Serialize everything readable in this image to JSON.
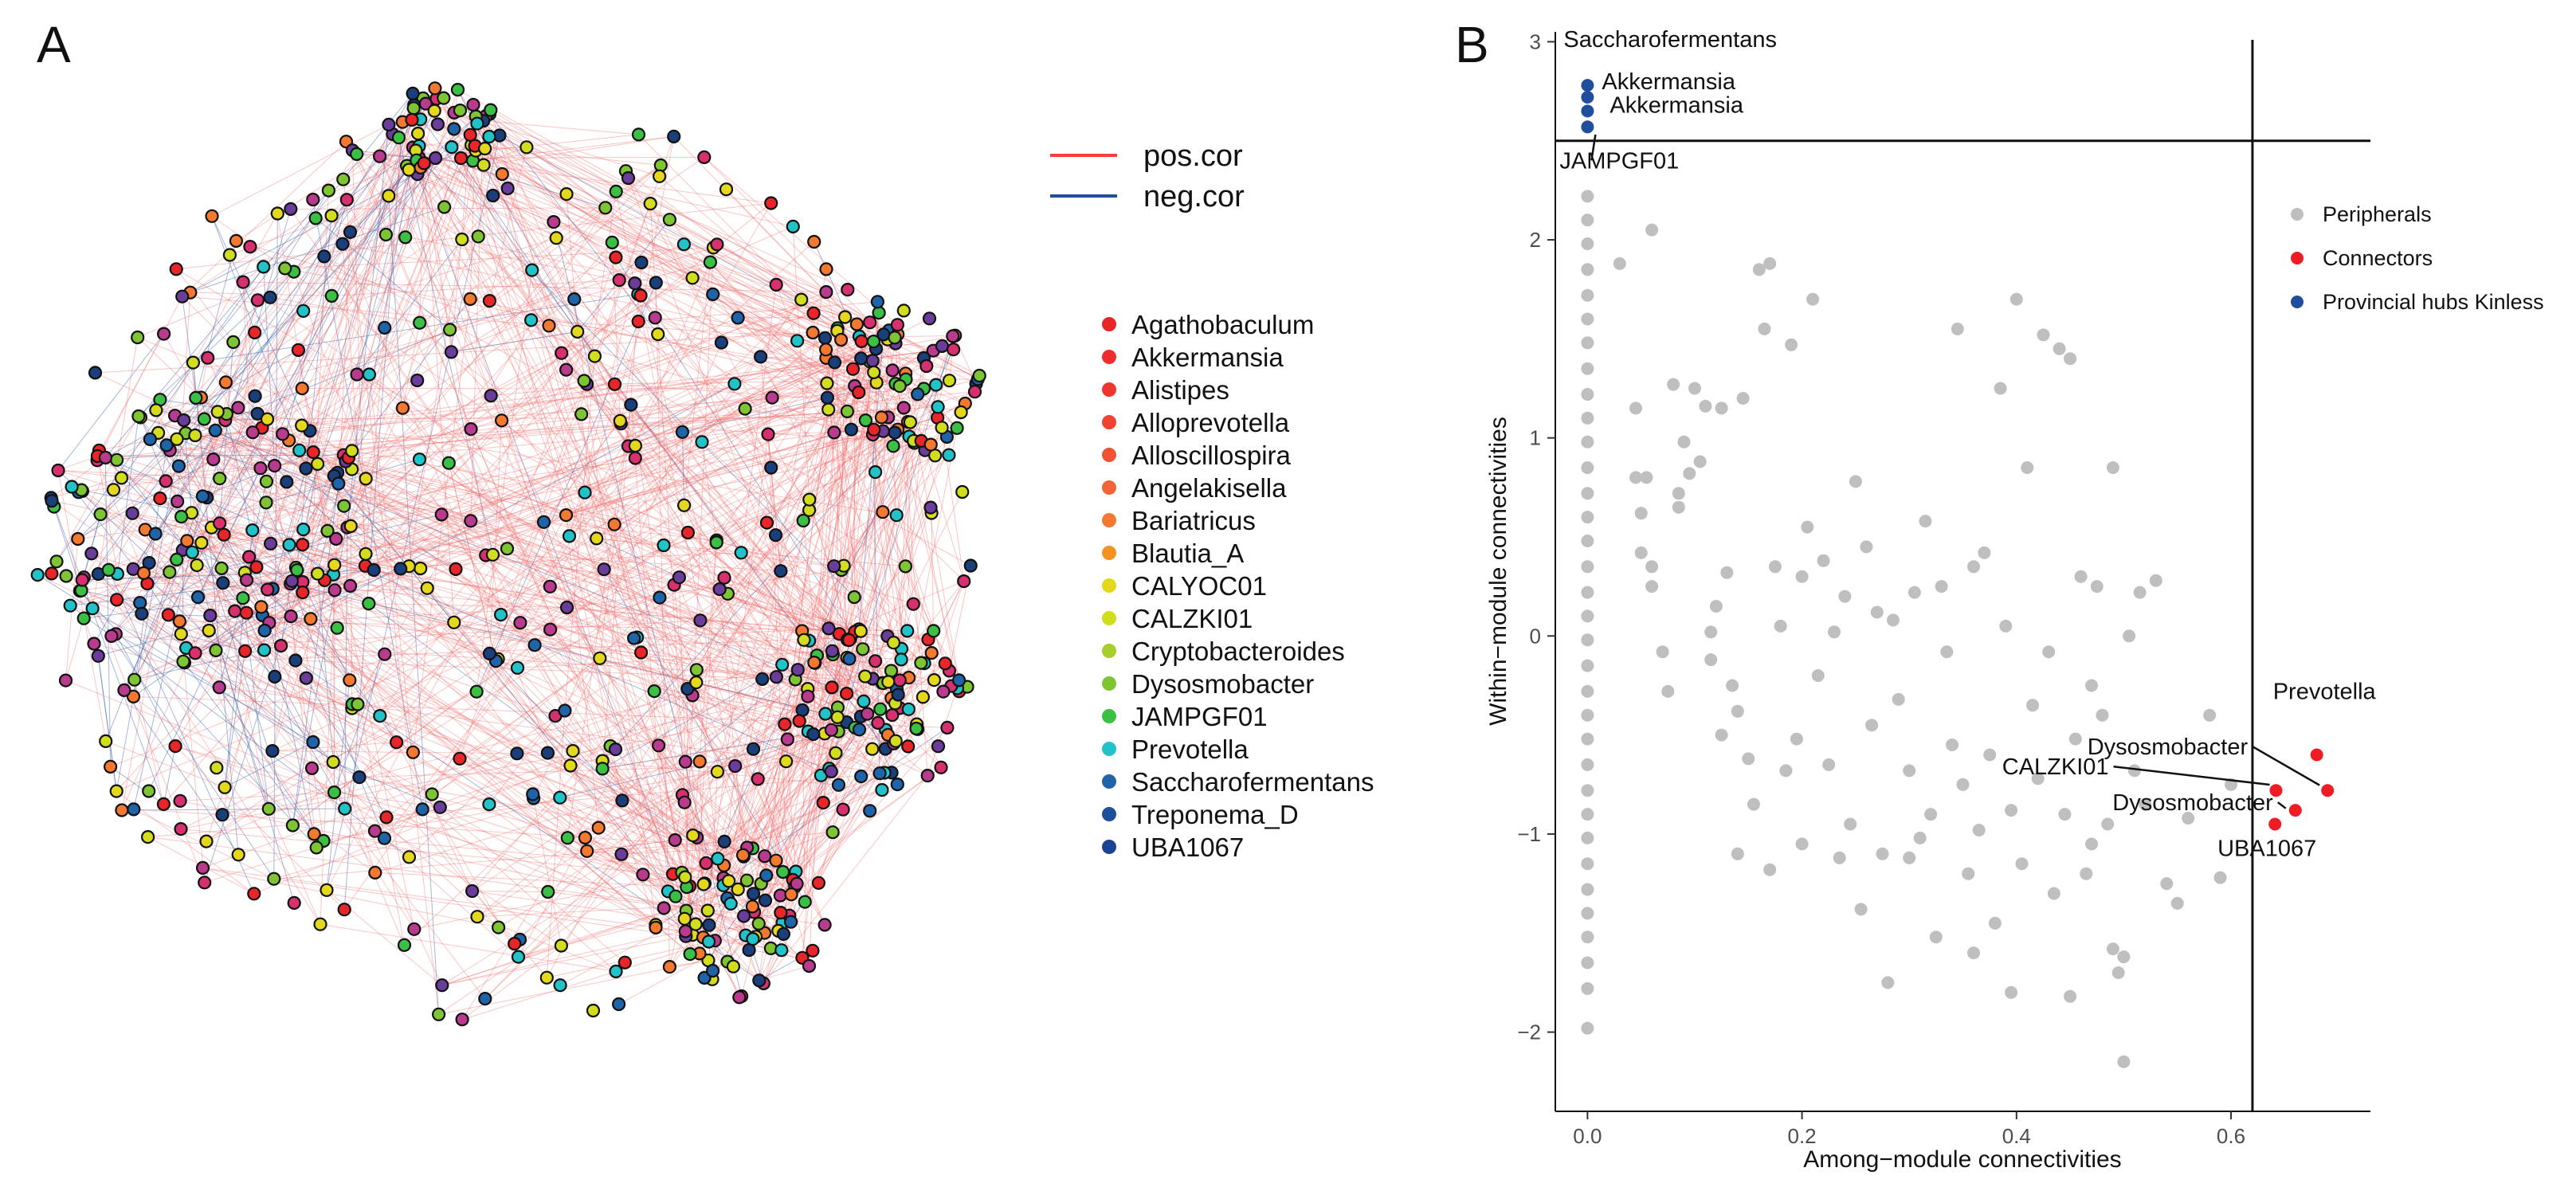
{
  "panel_a": {
    "label": "A",
    "edge_legend": [
      {
        "label": "pos.cor",
        "color": "#ff3b3b"
      },
      {
        "label": "neg.cor",
        "color": "#1f4e9c"
      }
    ],
    "genus_legend": [
      {
        "label": "Agathobaculum",
        "color": "#e8262a"
      },
      {
        "label": "Akkermansia",
        "color": "#ee2e2e"
      },
      {
        "label": "Alistipes",
        "color": "#f0352e"
      },
      {
        "label": "Alloprevotella",
        "color": "#f04430"
      },
      {
        "label": "Alloscillospira",
        "color": "#f15233"
      },
      {
        "label": "Angelakisella",
        "color": "#f26437"
      },
      {
        "label": "Bariatricus",
        "color": "#f2792f"
      },
      {
        "label": "Blautia_A",
        "color": "#f39123"
      },
      {
        "label": "CALYOC01",
        "color": "#e3d81b"
      },
      {
        "label": "CALZKI01",
        "color": "#d2dd1e"
      },
      {
        "label": "Cryptobacteroides",
        "color": "#a6cf2b"
      },
      {
        "label": "Dysosmobacter",
        "color": "#7fc433"
      },
      {
        "label": "JAMPGF01",
        "color": "#3bbf45"
      },
      {
        "label": "Prevotella",
        "color": "#22c3c8"
      },
      {
        "label": "Saccharofermentans",
        "color": "#1f63a8"
      },
      {
        "label": "Treponema_D",
        "color": "#1d4f9a"
      },
      {
        "label": "UBA1067",
        "color": "#1b4394"
      }
    ],
    "node_palette": [
      "#e8262a",
      "#d6306f",
      "#b83b8e",
      "#f2792f",
      "#e3d81b",
      "#d2dd1e",
      "#7fc433",
      "#3bbf45",
      "#22c3c8",
      "#1f63a8",
      "#1b3f7a",
      "#6a3d9a"
    ]
  },
  "panel_b": {
    "label": "B",
    "chart_data": {
      "type": "scatter",
      "xlabel": "Among−module connectivities",
      "ylabel": "Within−module connectivities",
      "xlim": [
        -0.03,
        0.73
      ],
      "ylim": [
        -2.4,
        3.05
      ],
      "x_ticks": [
        0.0,
        0.2,
        0.4,
        0.6
      ],
      "y_ticks": [
        -2,
        -1,
        0,
        1,
        2,
        3
      ],
      "x_tick_labels": [
        "0.0",
        "0.2",
        "0.4",
        "0.6"
      ],
      "y_tick_labels": [
        "−2",
        "−1",
        "0",
        "1",
        "2",
        "3"
      ],
      "thresholds": {
        "pc": 0.62,
        "zi": 2.5
      },
      "legend": [
        {
          "label": "Peripherals",
          "color": "#bfbfbf"
        },
        {
          "label": "Connectors",
          "color": "#ee1c25"
        },
        {
          "label": "Provincial hubs Kinless",
          "color": "#1f4e9c"
        }
      ],
      "series": [
        {
          "name": "Provincial hubs Kinless",
          "color": "#1f4e9c",
          "points": [
            [
              0.0,
              2.78
            ],
            [
              0.0,
              2.72
            ],
            [
              0.0,
              2.65
            ],
            [
              0.0,
              2.57
            ]
          ]
        },
        {
          "name": "Connectors",
          "color": "#ee1c25",
          "points": [
            [
              0.68,
              -0.6
            ],
            [
              0.69,
              -0.78
            ],
            [
              0.642,
              -0.78
            ],
            [
              0.66,
              -0.88
            ],
            [
              0.641,
              -0.95
            ]
          ]
        },
        {
          "name": "Peripherals",
          "color": "#bfbfbf",
          "points": [
            [
              0.0,
              2.22
            ],
            [
              0.0,
              2.1
            ],
            [
              0.0,
              1.98
            ],
            [
              0.0,
              1.85
            ],
            [
              0.0,
              1.72
            ],
            [
              0.0,
              1.6
            ],
            [
              0.0,
              1.48
            ],
            [
              0.0,
              1.35
            ],
            [
              0.0,
              1.22
            ],
            [
              0.0,
              1.1
            ],
            [
              0.0,
              0.98
            ],
            [
              0.0,
              0.85
            ],
            [
              0.0,
              0.72
            ],
            [
              0.0,
              0.6
            ],
            [
              0.0,
              0.48
            ],
            [
              0.0,
              0.35
            ],
            [
              0.0,
              0.22
            ],
            [
              0.0,
              0.1
            ],
            [
              0.0,
              -0.02
            ],
            [
              0.0,
              -0.15
            ],
            [
              0.0,
              -0.28
            ],
            [
              0.0,
              -0.4
            ],
            [
              0.0,
              -0.52
            ],
            [
              0.0,
              -0.65
            ],
            [
              0.0,
              -0.78
            ],
            [
              0.0,
              -0.9
            ],
            [
              0.0,
              -1.02
            ],
            [
              0.0,
              -1.15
            ],
            [
              0.0,
              -1.28
            ],
            [
              0.0,
              -1.4
            ],
            [
              0.0,
              -1.52
            ],
            [
              0.0,
              -1.65
            ],
            [
              0.0,
              -1.78
            ],
            [
              0.0,
              -1.98
            ],
            [
              0.03,
              1.88
            ],
            [
              0.06,
              2.05
            ],
            [
              0.045,
              1.15
            ],
            [
              0.045,
              0.8
            ],
            [
              0.055,
              0.8
            ],
            [
              0.05,
              0.62
            ],
            [
              0.05,
              0.42
            ],
            [
              0.06,
              0.35
            ],
            [
              0.06,
              0.25
            ],
            [
              0.07,
              -0.08
            ],
            [
              0.075,
              -0.28
            ],
            [
              0.08,
              1.27
            ],
            [
              0.085,
              0.72
            ],
            [
              0.085,
              0.65
            ],
            [
              0.09,
              0.98
            ],
            [
              0.095,
              0.82
            ],
            [
              0.1,
              1.25
            ],
            [
              0.105,
              0.88
            ],
            [
              0.11,
              1.16
            ],
            [
              0.115,
              -0.12
            ],
            [
              0.115,
              0.02
            ],
            [
              0.12,
              0.15
            ],
            [
              0.125,
              1.15
            ],
            [
              0.13,
              0.32
            ],
            [
              0.135,
              -0.25
            ],
            [
              0.14,
              -0.38
            ],
            [
              0.145,
              1.2
            ],
            [
              0.15,
              -0.62
            ],
            [
              0.155,
              -0.85
            ],
            [
              0.16,
              1.85
            ],
            [
              0.165,
              1.55
            ],
            [
              0.17,
              1.88
            ],
            [
              0.175,
              0.35
            ],
            [
              0.18,
              0.05
            ],
            [
              0.185,
              -0.68
            ],
            [
              0.19,
              1.47
            ],
            [
              0.195,
              -0.52
            ],
            [
              0.2,
              0.3
            ],
            [
              0.205,
              0.55
            ],
            [
              0.21,
              1.7
            ],
            [
              0.215,
              -0.2
            ],
            [
              0.22,
              0.38
            ],
            [
              0.225,
              -0.65
            ],
            [
              0.23,
              0.02
            ],
            [
              0.235,
              -1.12
            ],
            [
              0.24,
              0.2
            ],
            [
              0.245,
              -0.95
            ],
            [
              0.25,
              0.78
            ],
            [
              0.255,
              -1.38
            ],
            [
              0.26,
              0.45
            ],
            [
              0.265,
              -0.45
            ],
            [
              0.27,
              0.12
            ],
            [
              0.275,
              -1.1
            ],
            [
              0.28,
              -1.75
            ],
            [
              0.285,
              0.08
            ],
            [
              0.29,
              -0.32
            ],
            [
              0.3,
              -0.68
            ],
            [
              0.305,
              0.22
            ],
            [
              0.31,
              -1.02
            ],
            [
              0.315,
              0.58
            ],
            [
              0.32,
              -0.9
            ],
            [
              0.325,
              -1.52
            ],
            [
              0.33,
              0.25
            ],
            [
              0.335,
              -0.08
            ],
            [
              0.34,
              -0.55
            ],
            [
              0.345,
              1.55
            ],
            [
              0.35,
              -0.75
            ],
            [
              0.355,
              -1.2
            ],
            [
              0.36,
              0.35
            ],
            [
              0.365,
              -0.98
            ],
            [
              0.37,
              0.42
            ],
            [
              0.375,
              -0.6
            ],
            [
              0.38,
              -1.45
            ],
            [
              0.385,
              1.25
            ],
            [
              0.39,
              0.05
            ],
            [
              0.395,
              -0.88
            ],
            [
              0.4,
              1.7
            ],
            [
              0.405,
              -1.15
            ],
            [
              0.41,
              0.85
            ],
            [
              0.415,
              -0.35
            ],
            [
              0.42,
              -0.72
            ],
            [
              0.425,
              1.52
            ],
            [
              0.43,
              -0.08
            ],
            [
              0.435,
              -1.3
            ],
            [
              0.44,
              1.45
            ],
            [
              0.445,
              -0.9
            ],
            [
              0.45,
              1.4
            ],
            [
              0.455,
              -0.52
            ],
            [
              0.46,
              0.3
            ],
            [
              0.465,
              -1.2
            ],
            [
              0.47,
              -1.05
            ],
            [
              0.475,
              0.25
            ],
            [
              0.48,
              -0.4
            ],
            [
              0.485,
              -0.95
            ],
            [
              0.49,
              0.85
            ],
            [
              0.495,
              -1.7
            ],
            [
              0.5,
              -2.15
            ],
            [
              0.505,
              0.0
            ],
            [
              0.51,
              -0.68
            ],
            [
              0.515,
              0.22
            ],
            [
              0.52,
              -0.85
            ],
            [
              0.53,
              0.28
            ],
            [
              0.54,
              -1.25
            ],
            [
              0.55,
              -1.35
            ],
            [
              0.56,
              -0.92
            ],
            [
              0.58,
              -0.4
            ],
            [
              0.59,
              -1.22
            ],
            [
              0.6,
              -0.75
            ],
            [
              0.395,
              -1.8
            ],
            [
              0.36,
              -1.6
            ],
            [
              0.2,
              -1.05
            ],
            [
              0.17,
              -1.18
            ],
            [
              0.14,
              -1.1
            ],
            [
              0.125,
              -0.5
            ],
            [
              0.3,
              -1.12
            ],
            [
              0.45,
              -1.82
            ],
            [
              0.49,
              -1.58
            ],
            [
              0.5,
              -1.62
            ],
            [
              0.47,
              -0.25
            ]
          ]
        }
      ],
      "annotations": [
        {
          "label": "Saccharofermentans",
          "x": 0.0,
          "y": 2.78
        },
        {
          "label": "Akkermansia",
          "x": 0.0,
          "y": 2.72
        },
        {
          "label": "Akkermansia",
          "x": 0.0,
          "y": 2.65
        },
        {
          "label": "JAMPGF01",
          "x": 0.0,
          "y": 2.57
        },
        {
          "label": "Prevotella",
          "x": 0.68,
          "y": -0.6
        },
        {
          "label": "Dysosmobacter",
          "x": 0.69,
          "y": -0.78
        },
        {
          "label": "CALZKI01",
          "x": 0.642,
          "y": -0.78
        },
        {
          "label": "Dysosmobacter",
          "x": 0.66,
          "y": -0.88
        },
        {
          "label": "UBA1067",
          "x": 0.641,
          "y": -0.95
        }
      ]
    }
  }
}
